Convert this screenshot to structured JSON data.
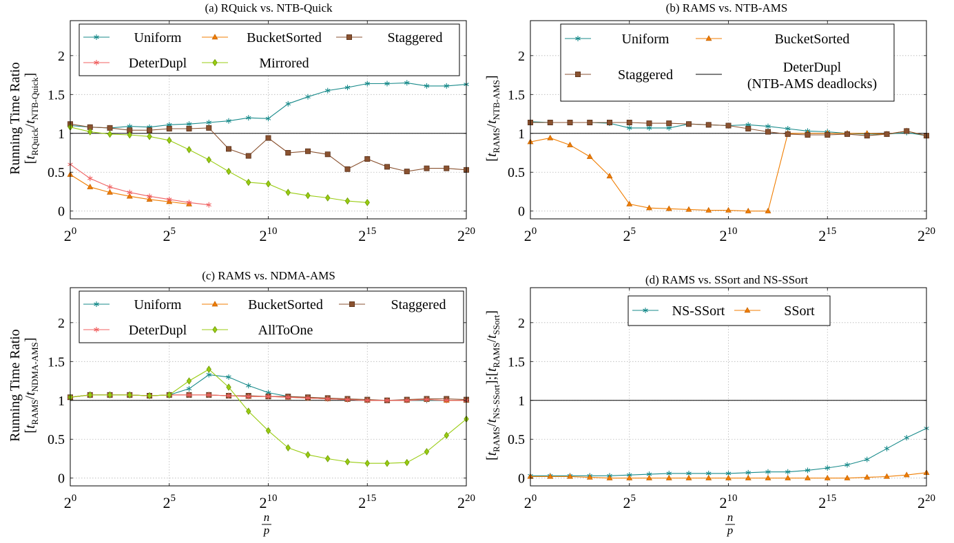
{
  "figure": {
    "xaxis_label_num": "n",
    "xaxis_label_den": "p"
  },
  "colors": {
    "teal": "#178a8a",
    "orange": "#f07d00",
    "brown": "#8a5230",
    "red": "#f06060",
    "lime": "#99cc11",
    "black": "#000000"
  },
  "chart_data": [
    {
      "id": "a",
      "type": "line",
      "title": "(a) RQuick vs. NTB-Quick",
      "ylabel_main": "Running Time Ratio",
      "ylabel_sub": "[t_RQuick/t_NTB-Quick]",
      "ylabel_t1": "RQuick",
      "ylabel_t2": "NTB-Quick",
      "ylim": [
        -0.1,
        2.45
      ],
      "yticks": [
        0,
        0.5,
        1,
        1.5,
        2
      ],
      "ytick_labels": [
        "0",
        "0.5",
        "1",
        "1.5",
        "2"
      ],
      "xlim_log2": [
        0,
        20
      ],
      "xticks_log2": [
        0,
        5,
        10,
        15,
        20
      ],
      "xtick_labels": [
        "2",
        "2",
        "2",
        "2",
        "2"
      ],
      "xtick_exponents": [
        "0",
        "5",
        "10",
        "15",
        "20"
      ],
      "grid": true,
      "reference_line": 1,
      "legend_position": "top",
      "legend_columns": 3,
      "series": [
        {
          "name": "Uniform",
          "marker": "star",
          "color": "#178a8a",
          "x_log2": [
            0,
            1,
            2,
            3,
            4,
            5,
            6,
            7,
            8,
            9,
            10,
            11,
            12,
            13,
            14,
            15,
            16,
            17,
            18,
            19,
            20
          ],
          "values": [
            1.1,
            1.08,
            1.07,
            1.09,
            1.08,
            1.11,
            1.12,
            1.14,
            1.16,
            1.2,
            1.19,
            1.38,
            1.47,
            1.55,
            1.59,
            1.64,
            1.64,
            1.65,
            1.61,
            1.61,
            1.63
          ]
        },
        {
          "name": "BucketSorted",
          "marker": "triangle",
          "color": "#f07d00",
          "x_log2": [
            0,
            1,
            2,
            3,
            4,
            5,
            6
          ],
          "values": [
            0.47,
            0.31,
            0.24,
            0.19,
            0.15,
            0.12,
            0.09
          ]
        },
        {
          "name": "Staggered",
          "marker": "square",
          "color": "#8a5230",
          "x_log2": [
            0,
            1,
            2,
            3,
            4,
            5,
            6,
            7,
            8,
            9,
            10,
            11,
            12,
            13,
            14,
            15,
            16,
            17,
            18,
            19,
            20
          ],
          "values": [
            1.12,
            1.08,
            1.07,
            1.04,
            1.04,
            1.06,
            1.06,
            1.07,
            0.8,
            0.71,
            0.94,
            0.75,
            0.77,
            0.73,
            0.54,
            0.67,
            0.57,
            0.51,
            0.55,
            0.55,
            0.53
          ]
        },
        {
          "name": "DeterDupl",
          "marker": "star",
          "color": "#f06060",
          "x_log2": [
            0,
            1,
            2,
            3,
            4,
            5,
            6,
            7
          ],
          "values": [
            0.6,
            0.42,
            0.31,
            0.24,
            0.19,
            0.15,
            0.11,
            0.08
          ]
        },
        {
          "name": "Mirrored",
          "marker": "diamond",
          "color": "#99cc11",
          "x_log2": [
            0,
            1,
            2,
            3,
            4,
            5,
            6,
            7,
            8,
            9,
            10,
            11,
            12,
            13,
            14,
            15
          ],
          "values": [
            1.08,
            1.02,
            0.99,
            0.98,
            0.96,
            0.91,
            0.79,
            0.66,
            0.51,
            0.37,
            0.35,
            0.24,
            0.2,
            0.17,
            0.13,
            0.11
          ]
        }
      ],
      "legend_slots": [
        {
          "series": 0,
          "col": 0,
          "row": 0
        },
        {
          "series": 1,
          "col": 1,
          "row": 0
        },
        {
          "series": 2,
          "col": 2,
          "row": 0
        },
        {
          "series": 3,
          "col": 0,
          "row": 1
        },
        {
          "series": 4,
          "col": 1,
          "row": 1
        }
      ]
    },
    {
      "id": "b",
      "type": "line",
      "title": "(b) RAMS vs. NTB-AMS",
      "ylabel_main": "",
      "ylabel_sub": "[t_RAMS/t_NTB-AMS]",
      "ylabel_t1": "RAMS",
      "ylabel_t2": "NTB-AMS",
      "ylim": [
        -0.1,
        2.45
      ],
      "yticks": [
        0,
        0.5,
        1,
        1.5,
        2
      ],
      "ytick_labels": [
        "0",
        "0.5",
        "1",
        "1.5",
        "2"
      ],
      "xlim_log2": [
        0,
        20
      ],
      "xticks_log2": [
        0,
        5,
        10,
        15,
        20
      ],
      "xtick_labels": [
        "2",
        "2",
        "2",
        "2",
        "2"
      ],
      "xtick_exponents": [
        "0",
        "5",
        "10",
        "15",
        "20"
      ],
      "grid": true,
      "reference_line": 1,
      "legend_position": "top",
      "legend_columns": 2,
      "series": [
        {
          "name": "Uniform",
          "marker": "star",
          "color": "#178a8a",
          "x_log2": [
            0,
            1,
            2,
            3,
            4,
            5,
            6,
            7,
            8,
            9,
            10,
            11,
            12,
            13,
            14,
            15,
            16,
            17,
            18,
            19,
            20
          ],
          "values": [
            1.15,
            1.14,
            1.14,
            1.14,
            1.13,
            1.07,
            1.07,
            1.07,
            1.12,
            1.11,
            1.1,
            1.11,
            1.09,
            1.06,
            1.03,
            1.02,
            1.0,
            0.99,
            0.99,
            1.01,
            0.97
          ]
        },
        {
          "name": "BucketSorted",
          "marker": "triangle",
          "color": "#f07d00",
          "x_log2": [
            0,
            1,
            2,
            3,
            4,
            5,
            6,
            7,
            8,
            9,
            10,
            11,
            12,
            13,
            14,
            15,
            16,
            17,
            18,
            19,
            20
          ],
          "values": [
            0.89,
            0.94,
            0.85,
            0.7,
            0.45,
            0.09,
            0.04,
            0.03,
            0.02,
            0.01,
            0.01,
            0.0,
            0.0,
            1.0,
            1.0,
            1.0,
            1.0,
            1.0,
            0.99,
            1.03,
            0.97
          ]
        },
        {
          "name": "Staggered",
          "marker": "square",
          "color": "#8a5230",
          "x_log2": [
            0,
            1,
            2,
            3,
            4,
            5,
            6,
            7,
            8,
            9,
            10,
            11,
            12,
            13,
            14,
            15,
            16,
            17,
            18,
            19,
            20
          ],
          "values": [
            1.14,
            1.14,
            1.14,
            1.14,
            1.14,
            1.14,
            1.13,
            1.13,
            1.12,
            1.11,
            1.1,
            1.06,
            1.02,
            0.99,
            0.98,
            0.98,
            0.99,
            0.97,
            0.99,
            1.03,
            0.97
          ]
        },
        {
          "name": "DeterDupl",
          "name_line2": "(NTB-AMS deadlocks)",
          "marker": "none",
          "color": "#000000",
          "x_log2": [],
          "values": []
        }
      ],
      "legend_slots": [
        {
          "series": 0,
          "col": 0,
          "row": 0
        },
        {
          "series": 1,
          "col": 1,
          "row": 0
        },
        {
          "series": 2,
          "col": 0,
          "row": 1
        },
        {
          "series": 3,
          "col": 1,
          "row": 1
        }
      ]
    },
    {
      "id": "c",
      "type": "line",
      "title": "(c) RAMS vs. NDMA-AMS",
      "ylabel_main": "Running Time Ratio",
      "ylabel_sub": "[t_RAMS/t_NDMA-AMS]",
      "ylabel_t1": "RAMS",
      "ylabel_t2": "NDMA-AMS",
      "ylim": [
        -0.1,
        2.45
      ],
      "yticks": [
        0,
        0.5,
        1,
        1.5,
        2
      ],
      "ytick_labels": [
        "0",
        "0.5",
        "1",
        "1.5",
        "2"
      ],
      "xlim_log2": [
        0,
        20
      ],
      "xticks_log2": [
        0,
        5,
        10,
        15,
        20
      ],
      "xtick_labels": [
        "2",
        "2",
        "2",
        "2",
        "2"
      ],
      "xtick_exponents": [
        "0",
        "5",
        "10",
        "15",
        "20"
      ],
      "grid": true,
      "reference_line": 1,
      "legend_position": "top",
      "legend_columns": 3,
      "series": [
        {
          "name": "Uniform",
          "marker": "star",
          "color": "#178a8a",
          "x_log2": [
            0,
            1,
            2,
            3,
            4,
            5,
            6,
            7,
            8,
            9,
            10,
            11,
            12,
            13,
            14,
            15,
            16,
            17,
            18,
            19,
            20
          ],
          "values": [
            1.04,
            1.07,
            1.07,
            1.07,
            1.06,
            1.07,
            1.15,
            1.33,
            1.3,
            1.19,
            1.1,
            1.05,
            1.03,
            1.02,
            1.01,
            1.0,
            1.0,
            1.0,
            1.0,
            1.0,
            1.0
          ]
        },
        {
          "name": "BucketSorted",
          "marker": "triangle",
          "color": "#f07d00",
          "x_log2": [
            0,
            1,
            2,
            3,
            4,
            5,
            6,
            7,
            8,
            9,
            10,
            11,
            12,
            13,
            14,
            15,
            16,
            17,
            18,
            19,
            20
          ],
          "values": [
            1.04,
            1.07,
            1.07,
            1.07,
            1.06,
            1.07,
            1.07,
            1.07,
            1.06,
            1.05,
            1.05,
            1.04,
            1.03,
            1.02,
            1.01,
            1.0,
            1.0,
            1.0,
            1.01,
            1.0,
            1.0
          ]
        },
        {
          "name": "Staggered",
          "marker": "square",
          "color": "#8a5230",
          "x_log2": [
            0,
            1,
            2,
            3,
            4,
            5,
            6,
            7,
            8,
            9,
            10,
            11,
            12,
            13,
            14,
            15,
            16,
            17,
            18,
            19,
            20
          ],
          "values": [
            1.04,
            1.07,
            1.07,
            1.07,
            1.06,
            1.07,
            1.07,
            1.07,
            1.06,
            1.06,
            1.05,
            1.05,
            1.04,
            1.03,
            1.02,
            1.01,
            1.0,
            1.01,
            1.02,
            1.02,
            1.01
          ]
        },
        {
          "name": "DeterDupl",
          "marker": "star",
          "color": "#f06060",
          "x_log2": [
            0,
            1,
            2,
            3,
            4,
            5,
            6,
            7,
            8,
            9,
            10,
            11,
            12,
            13,
            14,
            15,
            16,
            17,
            18,
            19,
            20
          ],
          "values": [
            1.04,
            1.07,
            1.07,
            1.07,
            1.06,
            1.07,
            1.07,
            1.07,
            1.06,
            1.05,
            1.05,
            1.04,
            1.03,
            1.02,
            1.01,
            1.0,
            1.0,
            1.0,
            1.01,
            1.0,
            1.0
          ]
        },
        {
          "name": "AllToOne",
          "marker": "diamond",
          "color": "#99cc11",
          "x_log2": [
            0,
            1,
            2,
            3,
            4,
            5,
            6,
            7,
            8,
            9,
            10,
            11,
            12,
            13,
            14,
            15,
            16,
            17,
            18,
            19,
            20
          ],
          "values": [
            1.04,
            1.07,
            1.07,
            1.07,
            1.06,
            1.07,
            1.25,
            1.4,
            1.17,
            0.86,
            0.61,
            0.39,
            0.3,
            0.25,
            0.21,
            0.19,
            0.19,
            0.2,
            0.34,
            0.55,
            0.76
          ]
        }
      ],
      "legend_slots": [
        {
          "series": 0,
          "col": 0,
          "row": 0
        },
        {
          "series": 1,
          "col": 1,
          "row": 0
        },
        {
          "series": 2,
          "col": 2,
          "row": 0
        },
        {
          "series": 3,
          "col": 0,
          "row": 1
        },
        {
          "series": 4,
          "col": 1,
          "row": 1
        }
      ]
    },
    {
      "id": "d",
      "type": "line",
      "title": "(d) RAMS vs. SSort and NS-SSort",
      "ylabel_main": "",
      "ylabel_sub": "[t_RAMS/t_NS-SSort];[t_RAMS/t_SSort]",
      "ylabel_t1": "RAMS",
      "ylabel_t2": "NS-SSort",
      "ylabel_t3": "SSort",
      "ylim": [
        -0.1,
        2.45
      ],
      "yticks": [
        0,
        0.5,
        1,
        1.5,
        2
      ],
      "ytick_labels": [
        "0",
        "0.5",
        "1",
        "1.5",
        "2"
      ],
      "xlim_log2": [
        0,
        20
      ],
      "xticks_log2": [
        0,
        5,
        10,
        15,
        20
      ],
      "xtick_labels": [
        "2",
        "2",
        "2",
        "2",
        "2"
      ],
      "xtick_exponents": [
        "0",
        "5",
        "10",
        "15",
        "20"
      ],
      "grid": true,
      "reference_line": 1,
      "legend_position": "top",
      "legend_columns": 2,
      "series": [
        {
          "name": "NS-SSort",
          "marker": "star",
          "color": "#178a8a",
          "x_log2": [
            0,
            1,
            2,
            3,
            4,
            5,
            6,
            7,
            8,
            9,
            10,
            11,
            12,
            13,
            14,
            15,
            16,
            17,
            18,
            19,
            20
          ],
          "values": [
            0.03,
            0.03,
            0.03,
            0.03,
            0.03,
            0.04,
            0.05,
            0.06,
            0.06,
            0.06,
            0.06,
            0.07,
            0.08,
            0.08,
            0.1,
            0.13,
            0.17,
            0.24,
            0.38,
            0.52,
            0.64
          ]
        },
        {
          "name": "SSort",
          "marker": "triangle",
          "color": "#f07d00",
          "x_log2": [
            0,
            1,
            2,
            3,
            4,
            5,
            6,
            7,
            8,
            9,
            10,
            11,
            12,
            13,
            14,
            15,
            16,
            17,
            18,
            19,
            20
          ],
          "values": [
            0.02,
            0.02,
            0.02,
            0.01,
            0.0,
            0.0,
            0.0,
            0.0,
            0.0,
            0.0,
            0.0,
            0.0,
            0.0,
            0.0,
            0.0,
            0.0,
            0.0,
            0.01,
            0.02,
            0.04,
            0.07
          ]
        }
      ],
      "legend_slots": [
        {
          "series": 0,
          "col": 0,
          "row": 0
        },
        {
          "series": 1,
          "col": 1,
          "row": 0
        }
      ]
    }
  ]
}
